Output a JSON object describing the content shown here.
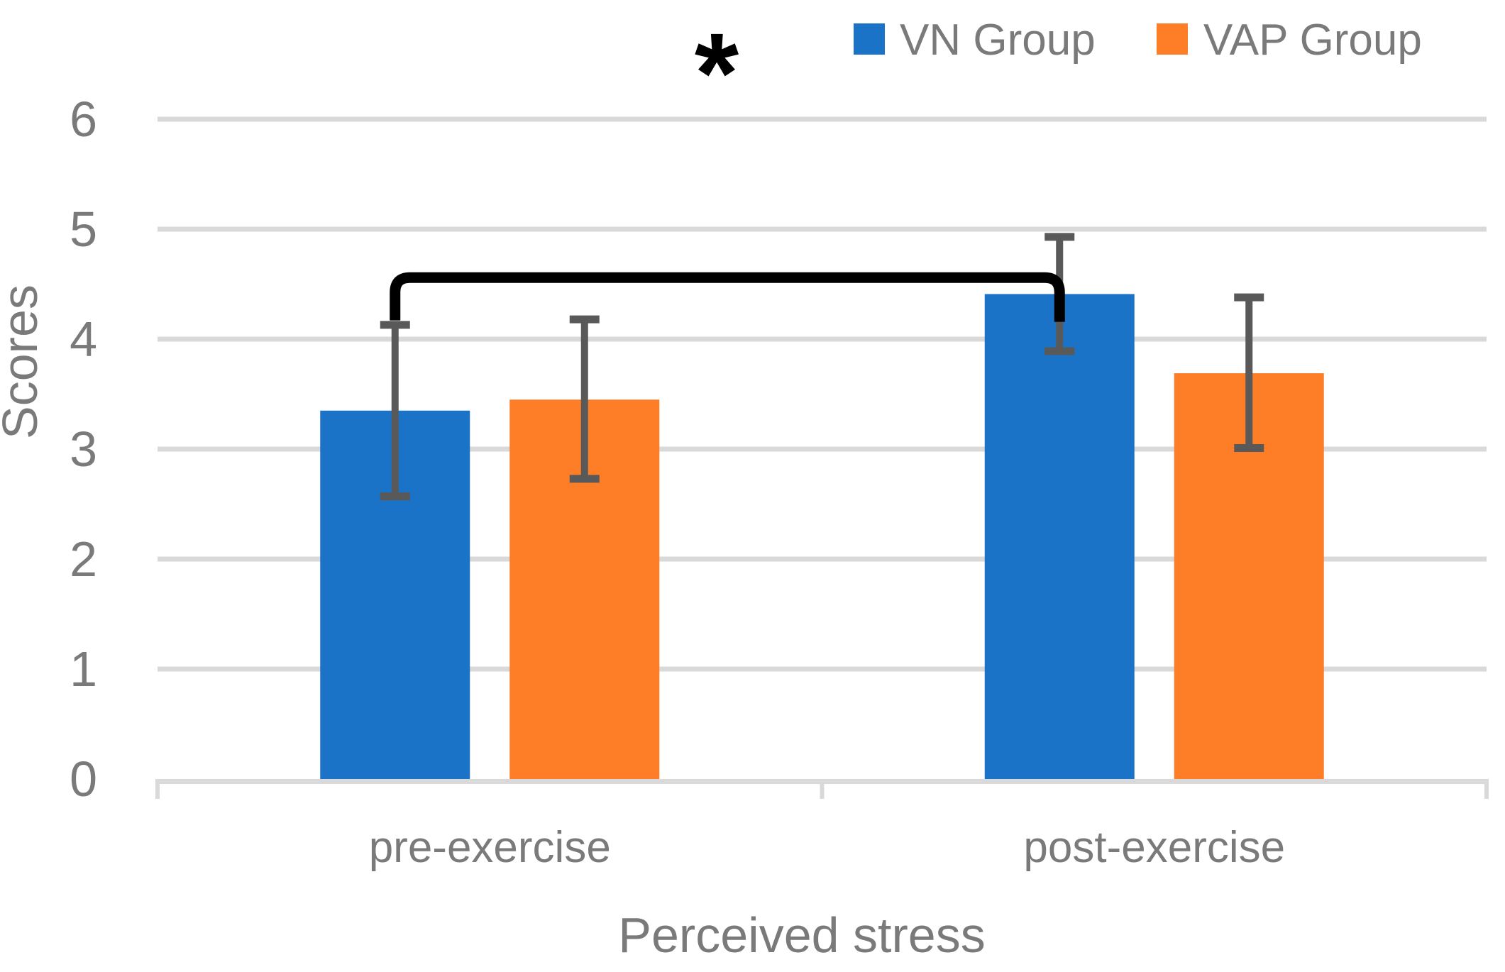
{
  "chart_data": {
    "type": "bar",
    "title": "",
    "xlabel": "Perceived stress",
    "ylabel": "Scores",
    "categories": [
      "pre-exercise",
      "post-exercise"
    ],
    "series": [
      {
        "name": "VN Group",
        "color": "#1B73C8",
        "values": [
          3.35,
          4.41
        ],
        "error_upper": [
          4.13,
          4.93
        ],
        "error_lower": [
          2.57,
          3.89
        ]
      },
      {
        "name": "VAP Group",
        "color": "#FD7E27",
        "values": [
          3.45,
          3.69
        ],
        "error_upper": [
          4.18,
          4.38
        ],
        "error_lower": [
          2.73,
          3.01
        ]
      }
    ],
    "ylim": [
      0,
      6
    ],
    "yticks": [
      0,
      1,
      2,
      3,
      4,
      5,
      6
    ],
    "grid": true,
    "legend_position": "top-right",
    "annotation": {
      "symbol": "*",
      "connects_series": "VN Group",
      "from_category": "pre-exercise",
      "to_category": "post-exercise",
      "bracket_y_value": 4.56,
      "arm_end_value": 4.17
    }
  },
  "colors": {
    "gridline": "#D9D9D9",
    "axis_line": "#D9D9D9",
    "error_bar": "#595959",
    "text_gray": "#7A7A7A",
    "annotation_black": "#000000"
  }
}
